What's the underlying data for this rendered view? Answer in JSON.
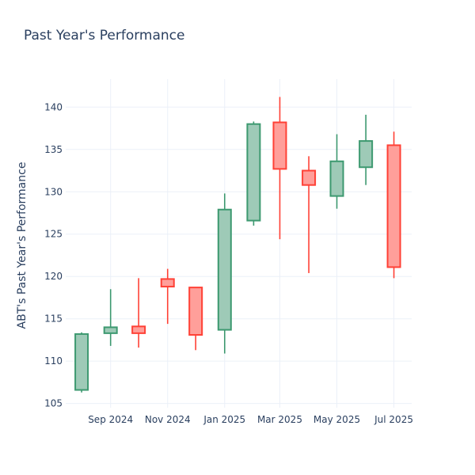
{
  "chart_data": {
    "type": "candlestick",
    "title": "Past Year's Performance",
    "xlabel": "",
    "ylabel": "ABT's Past Year's Performance",
    "ylim": [
      104.5,
      143.3
    ],
    "yticks": [
      105,
      110,
      115,
      120,
      125,
      130,
      135,
      140
    ],
    "xticks": [
      "2024-09-01",
      "2024-11-01",
      "2025-01-01",
      "2025-03-01",
      "2025-05-01",
      "2025-07-01"
    ],
    "xtick_labels": [
      "Sep 2024",
      "Nov 2024",
      "Jan 2025",
      "Mar 2025",
      "May 2025",
      "Jul 2025"
    ],
    "xlim": [
      "2024-07-15",
      "2025-07-20"
    ],
    "grid": true,
    "colors": {
      "increasing": "#3d9970",
      "decreasing": "#ff4136",
      "increasing_fill": "#9ecab7",
      "decreasing_fill": "#ff9f9a"
    },
    "candles": [
      {
        "date": "2024-08-01",
        "open": 106.6,
        "high": 113.4,
        "low": 106.3,
        "close": 113.2
      },
      {
        "date": "2024-09-01",
        "open": 113.3,
        "high": 118.5,
        "low": 111.8,
        "close": 114.0
      },
      {
        "date": "2024-10-01",
        "open": 114.1,
        "high": 119.8,
        "low": 111.6,
        "close": 113.3
      },
      {
        "date": "2024-11-01",
        "open": 119.7,
        "high": 120.9,
        "low": 114.4,
        "close": 118.8
      },
      {
        "date": "2024-12-01",
        "open": 118.7,
        "high": 118.7,
        "low": 111.3,
        "close": 113.1
      },
      {
        "date": "2025-01-01",
        "open": 113.7,
        "high": 129.8,
        "low": 110.9,
        "close": 127.9
      },
      {
        "date": "2025-02-01",
        "open": 126.6,
        "high": 138.3,
        "low": 126.0,
        "close": 138.0
      },
      {
        "date": "2025-03-01",
        "open": 138.2,
        "high": 141.2,
        "low": 124.4,
        "close": 132.7
      },
      {
        "date": "2025-04-01",
        "open": 132.5,
        "high": 134.2,
        "low": 120.4,
        "close": 130.8
      },
      {
        "date": "2025-05-01",
        "open": 129.5,
        "high": 136.8,
        "low": 128.0,
        "close": 133.6
      },
      {
        "date": "2025-06-01",
        "open": 132.9,
        "high": 139.1,
        "low": 130.8,
        "close": 136.0
      },
      {
        "date": "2025-07-01",
        "open": 135.5,
        "high": 137.1,
        "low": 119.8,
        "close": 121.1
      }
    ]
  }
}
